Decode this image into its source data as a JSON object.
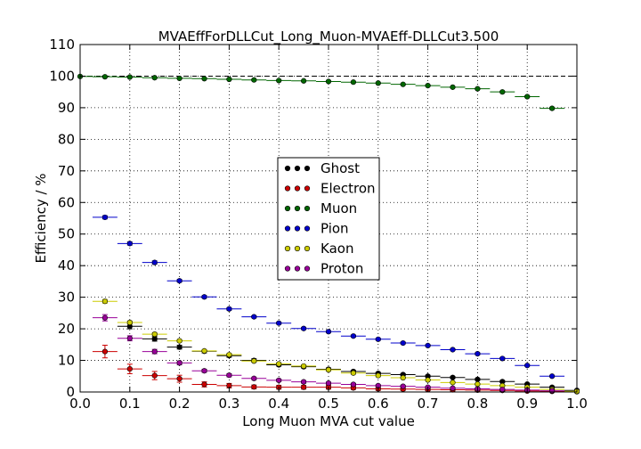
{
  "chart_data": {
    "type": "scatter",
    "title": "MVAEffForDLLCut_Long_Muon-MVAEff-DLLCut3.500",
    "xlabel": "Long Muon MVA cut value",
    "ylabel": "Efficiency / %",
    "xlim": [
      0.0,
      1.0
    ],
    "ylim": [
      0,
      110
    ],
    "xticks": [
      "0.0",
      "0.1",
      "0.2",
      "0.3",
      "0.4",
      "0.5",
      "0.6",
      "0.7",
      "0.8",
      "0.9",
      "1.0"
    ],
    "yticks": [
      "0",
      "10",
      "20",
      "30",
      "40",
      "50",
      "60",
      "70",
      "80",
      "90",
      "100",
      "110"
    ],
    "x_bin_halfwidth": 0.025,
    "reference_line": 100,
    "grid": true,
    "legend_position": "center",
    "x": [
      0.0,
      0.05,
      0.1,
      0.15,
      0.2,
      0.25,
      0.3,
      0.35,
      0.4,
      0.45,
      0.5,
      0.55,
      0.6,
      0.65,
      0.7,
      0.75,
      0.8,
      0.85,
      0.9,
      0.95,
      1.0
    ],
    "series": [
      {
        "name": "Ghost",
        "color": "#000000",
        "values": [
          null,
          null,
          20.8,
          16.8,
          14.2,
          12.9,
          11.5,
          10.0,
          8.6,
          8.0,
          7.2,
          6.5,
          5.9,
          5.5,
          5.0,
          4.6,
          4.0,
          3.3,
          2.5,
          1.5,
          0.5
        ],
        "errors": [
          0,
          0,
          0.8,
          0.7,
          0.6,
          0.5,
          0.5,
          0.5,
          0.4,
          0.4,
          0.4,
          0.3,
          0.3,
          0.3,
          0.3,
          0.3,
          0.3,
          0.3,
          0.2,
          0.2,
          0.1
        ]
      },
      {
        "name": "Electron",
        "color": "#cc0000",
        "values": [
          null,
          12.8,
          7.3,
          5.2,
          4.2,
          2.4,
          2.0,
          1.6,
          1.5,
          1.5,
          1.5,
          1.3,
          1.0,
          0.9,
          0.8,
          0.7,
          0.6,
          0.5,
          0.3,
          0.2,
          0.1
        ],
        "errors": [
          0,
          2.0,
          1.5,
          1.3,
          1.1,
          0.8,
          0.7,
          0.6,
          0.6,
          0.6,
          0.6,
          0.5,
          0.5,
          0.4,
          0.4,
          0.4,
          0.3,
          0.3,
          0.2,
          0.2,
          0.1
        ]
      },
      {
        "name": "Muon",
        "color": "#006600",
        "values": [
          99.9,
          99.8,
          99.7,
          99.5,
          99.3,
          99.2,
          99.0,
          98.8,
          98.6,
          98.5,
          98.3,
          98.1,
          97.8,
          97.4,
          97.0,
          96.5,
          96.0,
          95.0,
          93.5,
          89.8,
          null
        ],
        "errors": [
          0,
          0.1,
          0.1,
          0.1,
          0.1,
          0.1,
          0.1,
          0.1,
          0.1,
          0.1,
          0.1,
          0.1,
          0.1,
          0.1,
          0.1,
          0.1,
          0.2,
          0.2,
          0.2,
          0.3,
          0
        ]
      },
      {
        "name": "Pion",
        "color": "#0000cc",
        "values": [
          null,
          55.3,
          47.0,
          41.0,
          35.2,
          30.1,
          26.3,
          23.8,
          21.8,
          20.1,
          19.1,
          17.7,
          16.7,
          15.5,
          14.7,
          13.4,
          12.1,
          10.6,
          8.4,
          5.0,
          null
        ],
        "errors": [
          0,
          0.5,
          0.5,
          0.5,
          0.4,
          0.4,
          0.4,
          0.3,
          0.3,
          0.3,
          0.3,
          0.3,
          0.3,
          0.3,
          0.3,
          0.3,
          0.3,
          0.3,
          0.2,
          0.2,
          0
        ]
      },
      {
        "name": "Kaon",
        "color": "#cccc00",
        "values": [
          null,
          28.7,
          22.0,
          18.3,
          16.2,
          13.0,
          11.8,
          9.8,
          8.9,
          8.2,
          7.0,
          6.0,
          5.2,
          4.5,
          3.8,
          3.0,
          2.5,
          2.0,
          1.5,
          0.8,
          0.2
        ],
        "errors": [
          0,
          0.6,
          0.5,
          0.5,
          0.4,
          0.4,
          0.4,
          0.3,
          0.3,
          0.3,
          0.3,
          0.3,
          0.3,
          0.2,
          0.2,
          0.2,
          0.2,
          0.2,
          0.2,
          0.1,
          0.1
        ]
      },
      {
        "name": "Proton",
        "color": "#990099",
        "values": [
          null,
          23.5,
          17.0,
          12.8,
          9.2,
          6.7,
          5.3,
          4.3,
          3.7,
          3.2,
          2.8,
          2.4,
          2.0,
          1.8,
          1.5,
          1.2,
          1.0,
          0.8,
          0.6,
          0.4,
          null
        ],
        "errors": [
          0,
          1.0,
          0.8,
          0.7,
          0.6,
          0.5,
          0.5,
          0.4,
          0.4,
          0.4,
          0.3,
          0.3,
          0.3,
          0.3,
          0.3,
          0.2,
          0.2,
          0.2,
          0.2,
          0.1,
          0
        ]
      }
    ]
  }
}
